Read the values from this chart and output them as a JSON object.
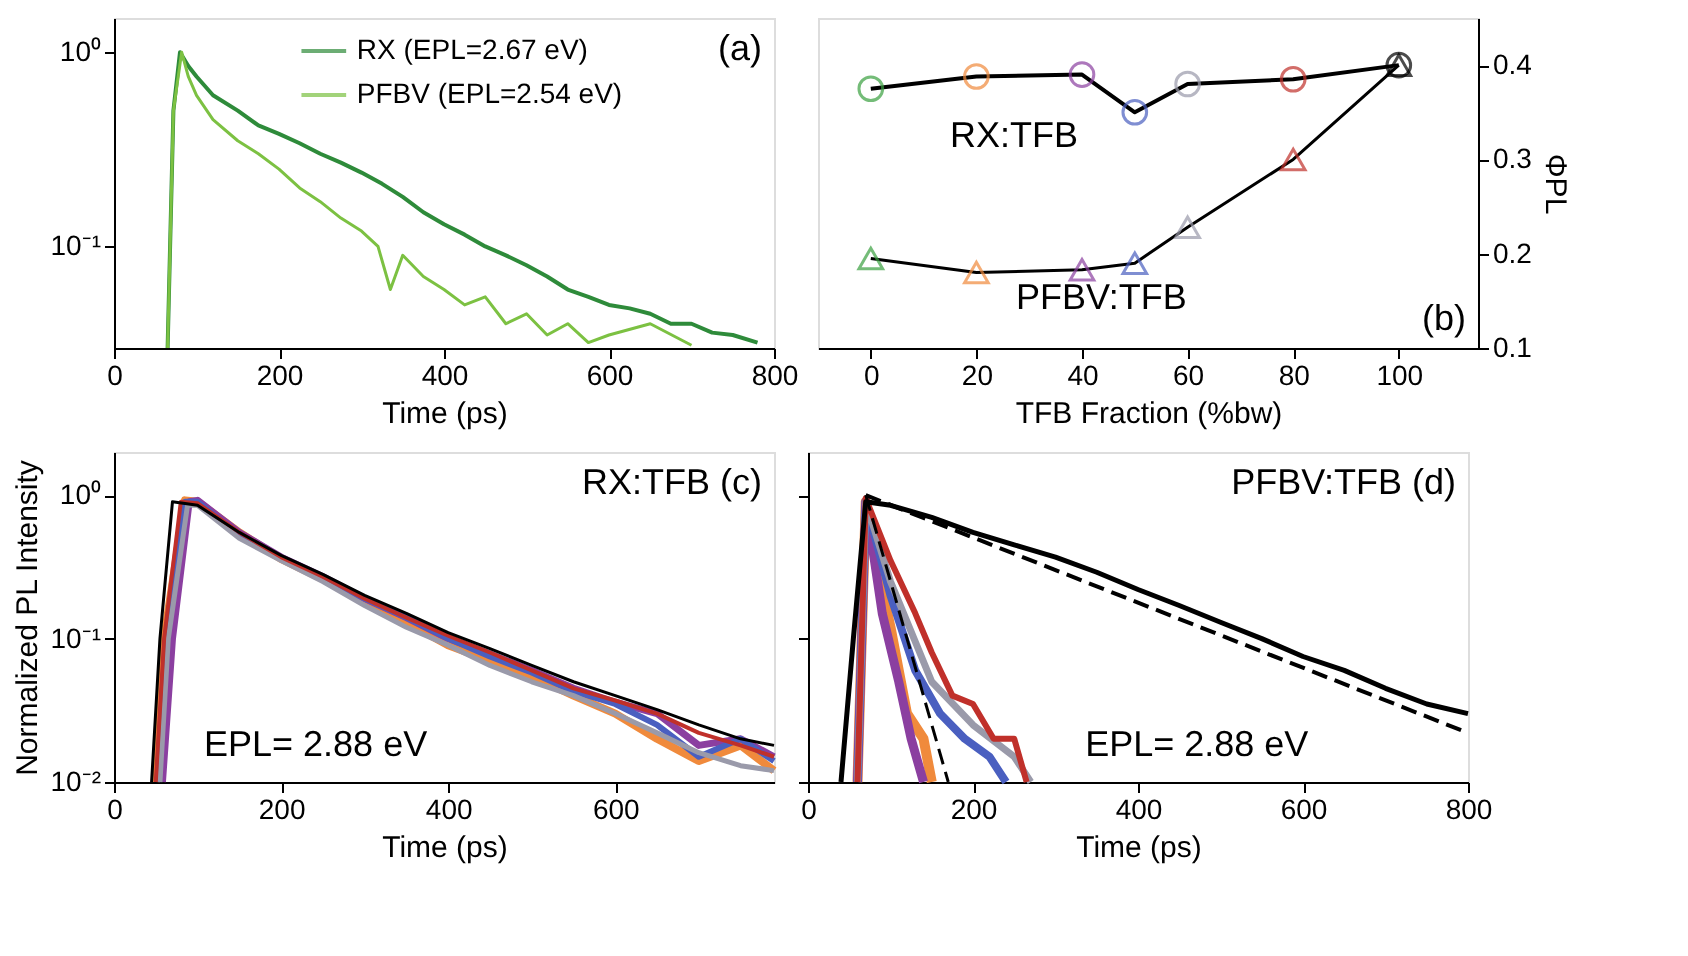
{
  "chart_data": [
    {
      "type": "line",
      "xlabel": "Time (ps)",
      "log": "y",
      "xlim": [
        0,
        800
      ],
      "xticks": [
        0,
        200,
        400,
        600,
        800
      ],
      "ylim": [
        0.03,
        1.5
      ],
      "yticks": [
        {
          "value": 1,
          "label": "10⁰"
        },
        {
          "value": 0.1,
          "label": "10⁻¹"
        }
      ],
      "legend": "top",
      "grid": false,
      "annotations": [
        "(a)"
      ],
      "series": [
        {
          "name": "RX (EPL=2.67 eV)",
          "color": "#2e8b3a",
          "x": [
            65,
            72,
            80,
            90,
            100,
            120,
            150,
            175,
            200,
            225,
            250,
            275,
            300,
            325,
            350,
            375,
            400,
            425,
            450,
            475,
            500,
            525,
            550,
            575,
            600,
            625,
            650,
            675,
            700,
            725,
            750,
            780
          ],
          "values": [
            0.03,
            0.5,
            1.0,
            0.85,
            0.75,
            0.6,
            0.5,
            0.42,
            0.38,
            0.34,
            0.3,
            0.27,
            0.24,
            0.21,
            0.18,
            0.15,
            0.13,
            0.115,
            0.1,
            0.09,
            0.08,
            0.07,
            0.06,
            0.055,
            0.05,
            0.048,
            0.045,
            0.04,
            0.04,
            0.036,
            0.035,
            0.032
          ]
        },
        {
          "name": "PFBV (EPL=2.54 eV)",
          "color": "#7cc142",
          "x": [
            65,
            72,
            82,
            90,
            100,
            120,
            150,
            175,
            200,
            225,
            250,
            275,
            300,
            320,
            335,
            350,
            375,
            400,
            425,
            450,
            475,
            500,
            525,
            550,
            575,
            600,
            650,
            700
          ],
          "values": [
            0.03,
            0.5,
            1.0,
            0.75,
            0.6,
            0.45,
            0.35,
            0.3,
            0.25,
            0.2,
            0.17,
            0.14,
            0.12,
            0.1,
            0.06,
            0.09,
            0.07,
            0.06,
            0.05,
            0.055,
            0.04,
            0.045,
            0.035,
            0.04,
            0.032,
            0.035,
            0.04,
            0.031
          ]
        }
      ]
    },
    {
      "type": "line",
      "xlabel": "TFB Fraction (%bw)",
      "ylabel": "ΦPL",
      "xlim": [
        -10,
        115
      ],
      "xticks": [
        0,
        20,
        40,
        60,
        80,
        100
      ],
      "ylim": [
        0.1,
        0.45
      ],
      "yticks": [
        0.1,
        0.2,
        0.3,
        0.4
      ],
      "grid": false,
      "annotations": [
        "(b)",
        "RX:TFB",
        "PFBV:TFB"
      ],
      "series": [
        {
          "color": "#000000",
          "marker": "circle",
          "x": [
            0,
            20,
            40,
            50,
            60,
            80,
            100
          ],
          "values": [
            0.375,
            0.388,
            0.39,
            0.35,
            0.38,
            0.385,
            0.4
          ],
          "colors": [
            "#3aa040",
            "#f08a3c",
            "#8b3fa0",
            "#4a5fc0",
            "#9a9aaa",
            "#c0302a",
            "#000000"
          ]
        },
        {
          "color": "#000000",
          "marker": "triangle",
          "x": [
            0,
            20,
            40,
            50,
            60,
            80,
            100
          ],
          "values": [
            0.195,
            0.18,
            0.183,
            0.19,
            0.228,
            0.3,
            0.4
          ],
          "colors": [
            "#3aa040",
            "#f08a3c",
            "#8b3fa0",
            "#4a5fc0",
            "#9a9aaa",
            "#c0302a",
            "#000000"
          ]
        }
      ]
    },
    {
      "type": "line",
      "xlabel": "Time (ps)",
      "ylabel": "Normalized PL Intensity",
      "log": "y",
      "xlim": [
        0,
        790
      ],
      "xticks": [
        0,
        200,
        400,
        600
      ],
      "ylim": [
        0.01,
        2
      ],
      "yticks": [
        {
          "value": 1,
          "label": "10⁰"
        },
        {
          "value": 0.1,
          "label": "10⁻¹"
        },
        {
          "value": 0.01,
          "label": "10⁻²"
        }
      ],
      "grid": false,
      "annotations": [
        "RX:TFB (c)",
        "EPL= 2.88 eV"
      ],
      "series": [
        {
          "color": "#f08a3c",
          "x": [
            50,
            60,
            85,
            100,
            150,
            200,
            250,
            300,
            350,
            400,
            450,
            500,
            550,
            600,
            650,
            700,
            750,
            790
          ],
          "values": [
            0.01,
            0.1,
            0.92,
            0.9,
            0.55,
            0.36,
            0.26,
            0.18,
            0.13,
            0.09,
            0.07,
            0.055,
            0.04,
            0.03,
            0.02,
            0.014,
            0.018,
            0.012
          ]
        },
        {
          "color": "#8b3fa0",
          "x": [
            58,
            70,
            90,
            100,
            150,
            200,
            250,
            300,
            350,
            400,
            450,
            500,
            550,
            600,
            650,
            700,
            750,
            790
          ],
          "values": [
            0.01,
            0.1,
            0.9,
            0.92,
            0.55,
            0.37,
            0.27,
            0.19,
            0.14,
            0.1,
            0.078,
            0.06,
            0.045,
            0.036,
            0.03,
            0.018,
            0.02,
            0.015
          ]
        },
        {
          "color": "#4a5fc0",
          "x": [
            52,
            62,
            85,
            100,
            150,
            200,
            250,
            300,
            350,
            400,
            450,
            500,
            550,
            600,
            650,
            700,
            750,
            790
          ],
          "values": [
            0.01,
            0.1,
            0.9,
            0.9,
            0.52,
            0.36,
            0.27,
            0.19,
            0.14,
            0.1,
            0.075,
            0.058,
            0.043,
            0.035,
            0.025,
            0.015,
            0.02,
            0.014
          ]
        },
        {
          "color": "#9a9aaa",
          "x": [
            55,
            65,
            88,
            100,
            150,
            200,
            250,
            300,
            350,
            400,
            450,
            500,
            550,
            600,
            650,
            700,
            750,
            790
          ],
          "values": [
            0.01,
            0.1,
            0.85,
            0.85,
            0.5,
            0.35,
            0.25,
            0.17,
            0.12,
            0.09,
            0.065,
            0.05,
            0.04,
            0.03,
            0.022,
            0.016,
            0.013,
            0.012
          ]
        },
        {
          "color": "#c0302a",
          "x": [
            50,
            60,
            80,
            100,
            150,
            200,
            250,
            300,
            350,
            400,
            450,
            500,
            550,
            600,
            650,
            700,
            750,
            790
          ],
          "values": [
            0.01,
            0.1,
            0.9,
            0.88,
            0.55,
            0.37,
            0.27,
            0.19,
            0.14,
            0.105,
            0.08,
            0.06,
            0.045,
            0.037,
            0.03,
            0.022,
            0.018,
            0.015
          ]
        },
        {
          "color": "#000000",
          "x": [
            45,
            55,
            70,
            100,
            150,
            200,
            250,
            300,
            350,
            400,
            450,
            500,
            550,
            600,
            650,
            700,
            750,
            790
          ],
          "values": [
            0.01,
            0.1,
            0.9,
            0.85,
            0.55,
            0.38,
            0.28,
            0.2,
            0.15,
            0.11,
            0.085,
            0.065,
            0.05,
            0.04,
            0.032,
            0.025,
            0.02,
            0.018
          ]
        }
      ]
    },
    {
      "type": "line",
      "xlabel": "Time (ps)",
      "log": "y",
      "xlim": [
        0,
        800
      ],
      "xticks": [
        0,
        200,
        400,
        600,
        800
      ],
      "ylim": [
        0.01,
        2
      ],
      "yticks": [
        {
          "value": 1,
          "label": null
        },
        {
          "value": 0.1,
          "label": null
        },
        {
          "value": 0.01,
          "label": null
        }
      ],
      "tick_labels": "x",
      "grid": false,
      "annotations": [
        "PFBV:TFB (d)",
        "EPL= 2.88 eV"
      ],
      "series": [
        {
          "color": "#f08a3c",
          "x": [
            60,
            70,
            85,
            100,
            120,
            140,
            150
          ],
          "values": [
            0.01,
            0.9,
            0.3,
            0.12,
            0.03,
            0.02,
            0.01
          ]
        },
        {
          "color": "#8b3fa0",
          "x": [
            60,
            70,
            90,
            110,
            125,
            140
          ],
          "values": [
            0.01,
            0.9,
            0.15,
            0.05,
            0.02,
            0.01
          ]
        },
        {
          "color": "#4a5fc0",
          "x": [
            60,
            70,
            100,
            130,
            160,
            190,
            220,
            240
          ],
          "values": [
            0.01,
            0.9,
            0.2,
            0.06,
            0.03,
            0.02,
            0.015,
            0.01
          ]
        },
        {
          "color": "#9a9aaa",
          "x": [
            60,
            70,
            100,
            150,
            200,
            250,
            270
          ],
          "values": [
            0.01,
            0.9,
            0.25,
            0.05,
            0.025,
            0.015,
            0.01
          ]
        },
        {
          "color": "#c0302a",
          "x": [
            60,
            70,
            100,
            130,
            150,
            175,
            200,
            225,
            250,
            265
          ],
          "values": [
            0.01,
            0.95,
            0.35,
            0.15,
            0.08,
            0.04,
            0.035,
            0.02,
            0.02,
            0.01
          ]
        },
        {
          "color": "#000000",
          "x": [
            40,
            55,
            70,
            100,
            150,
            200,
            250,
            300,
            350,
            400,
            450,
            500,
            550,
            600,
            650,
            700,
            750,
            800
          ],
          "values": [
            0.01,
            0.1,
            0.9,
            0.85,
            0.7,
            0.55,
            0.45,
            0.37,
            0.29,
            0.22,
            0.17,
            0.13,
            0.1,
            0.075,
            0.06,
            0.045,
            0.035,
            0.03
          ]
        },
        {
          "color": "#000000",
          "line_style": "dashed",
          "x": [
            70,
            800
          ],
          "values": [
            1.0,
            0.022
          ]
        },
        {
          "color": "#000000",
          "line_style": "dashed",
          "x": [
            70,
            170
          ],
          "values": [
            1.0,
            0.01
          ]
        }
      ]
    }
  ]
}
